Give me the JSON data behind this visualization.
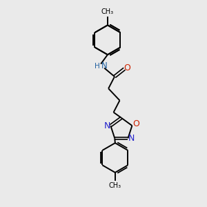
{
  "background_color": "#eaeaea",
  "bond_color": "#000000",
  "N_color": "#2060a0",
  "O_color": "#cc2200",
  "N_ring_color": "#2222cc",
  "O_ring_color": "#cc2200",
  "text_color": "#000000",
  "figsize": [
    3.0,
    3.0
  ],
  "dpi": 100,
  "xlim": [
    0,
    10
  ],
  "ylim": [
    0,
    10
  ]
}
